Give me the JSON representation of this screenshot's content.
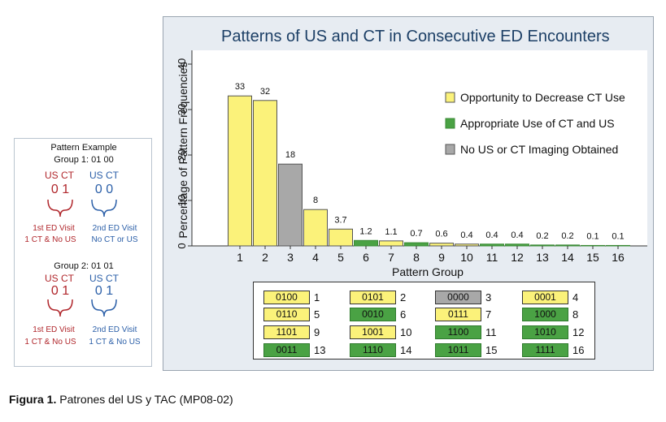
{
  "example": {
    "title": "Pattern Example",
    "group1_label": "Group 1:  01 00",
    "group1_us_ct_left": "US CT",
    "group1_us_ct_right": "US CT",
    "group1_digits_left": "0  1",
    "group1_digits_right": "0  0",
    "group1_visit1_line1": "1st ED Visit",
    "group1_visit1_line2": "1 CT & No US",
    "group1_visit2_line1": "2nd ED Visit",
    "group1_visit2_line2": "No CT or US",
    "group2_label": "Group 2:  01 01",
    "group2_us_ct_left": "US CT",
    "group2_us_ct_right": "US CT",
    "group2_digits_left": "0  1",
    "group2_digits_right": "0  1",
    "group2_visit1_line1": "1st ED Visit",
    "group2_visit1_line2": "1 CT & No US",
    "group2_visit2_line1": "2nd ED Visit",
    "group2_visit2_line2": "1 CT & No US"
  },
  "colors": {
    "yellow": "#fbf27a",
    "green": "#4aa244",
    "gray": "#a8a8a8",
    "title": "#1c3f66"
  },
  "chart_data": {
    "type": "bar",
    "title": "Patterns of US and CT in Consecutive ED Encounters",
    "xlabel": "Pattern Group",
    "ylabel": "Percentage of Pattern Frequencies",
    "ylim": [
      0,
      40
    ],
    "yticks": [
      0,
      10,
      20,
      30,
      40
    ],
    "categories": [
      "1",
      "2",
      "3",
      "4",
      "5",
      "6",
      "7",
      "8",
      "9",
      "10",
      "11",
      "12",
      "13",
      "14",
      "15",
      "16"
    ],
    "values": [
      33,
      32,
      18,
      8,
      3.7,
      1.2,
      1.1,
      0.7,
      0.6,
      0.4,
      0.4,
      0.4,
      0.2,
      0.2,
      0.1,
      0.1
    ],
    "value_labels": [
      "33",
      "32",
      "18",
      "8",
      "3.7",
      "1.2",
      "1.1",
      "0.7",
      "0.6",
      "0.4",
      "0.4",
      "0.4",
      "0.2",
      "0.2",
      "0.1",
      "0.1"
    ],
    "bar_classes": [
      "yellow",
      "yellow",
      "gray",
      "yellow",
      "yellow",
      "green",
      "yellow",
      "green",
      "yellow",
      "yellow",
      "green",
      "green",
      "green",
      "green",
      "green",
      "green"
    ],
    "legend": [
      {
        "label": "Opportunity to Decrease CT Use",
        "class": "yellow"
      },
      {
        "label": "Appropriate Use of CT and US",
        "class": "green"
      },
      {
        "label": "No US or CT Imaging Obtained",
        "class": "gray"
      }
    ],
    "legend_position": "top-right",
    "grid": false
  },
  "pattern_key": [
    {
      "code": "0100",
      "num": "1",
      "class": "yellow"
    },
    {
      "code": "0101",
      "num": "2",
      "class": "yellow"
    },
    {
      "code": "0000",
      "num": "3",
      "class": "gray"
    },
    {
      "code": "0001",
      "num": "4",
      "class": "yellow"
    },
    {
      "code": "0110",
      "num": "5",
      "class": "yellow"
    },
    {
      "code": "0010",
      "num": "6",
      "class": "green"
    },
    {
      "code": "0111",
      "num": "7",
      "class": "yellow"
    },
    {
      "code": "1000",
      "num": "8",
      "class": "green"
    },
    {
      "code": "1101",
      "num": "9",
      "class": "yellow"
    },
    {
      "code": "1001",
      "num": "10",
      "class": "yellow"
    },
    {
      "code": "1100",
      "num": "11",
      "class": "green"
    },
    {
      "code": "1010",
      "num": "12",
      "class": "green"
    },
    {
      "code": "0011",
      "num": "13",
      "class": "green"
    },
    {
      "code": "1110",
      "num": "14",
      "class": "green"
    },
    {
      "code": "1011",
      "num": "15",
      "class": "green"
    },
    {
      "code": "1111",
      "num": "16",
      "class": "green"
    }
  ],
  "caption": {
    "label": "Figura 1.",
    "text": "Patrones del US y TAC (MP08-02)"
  }
}
